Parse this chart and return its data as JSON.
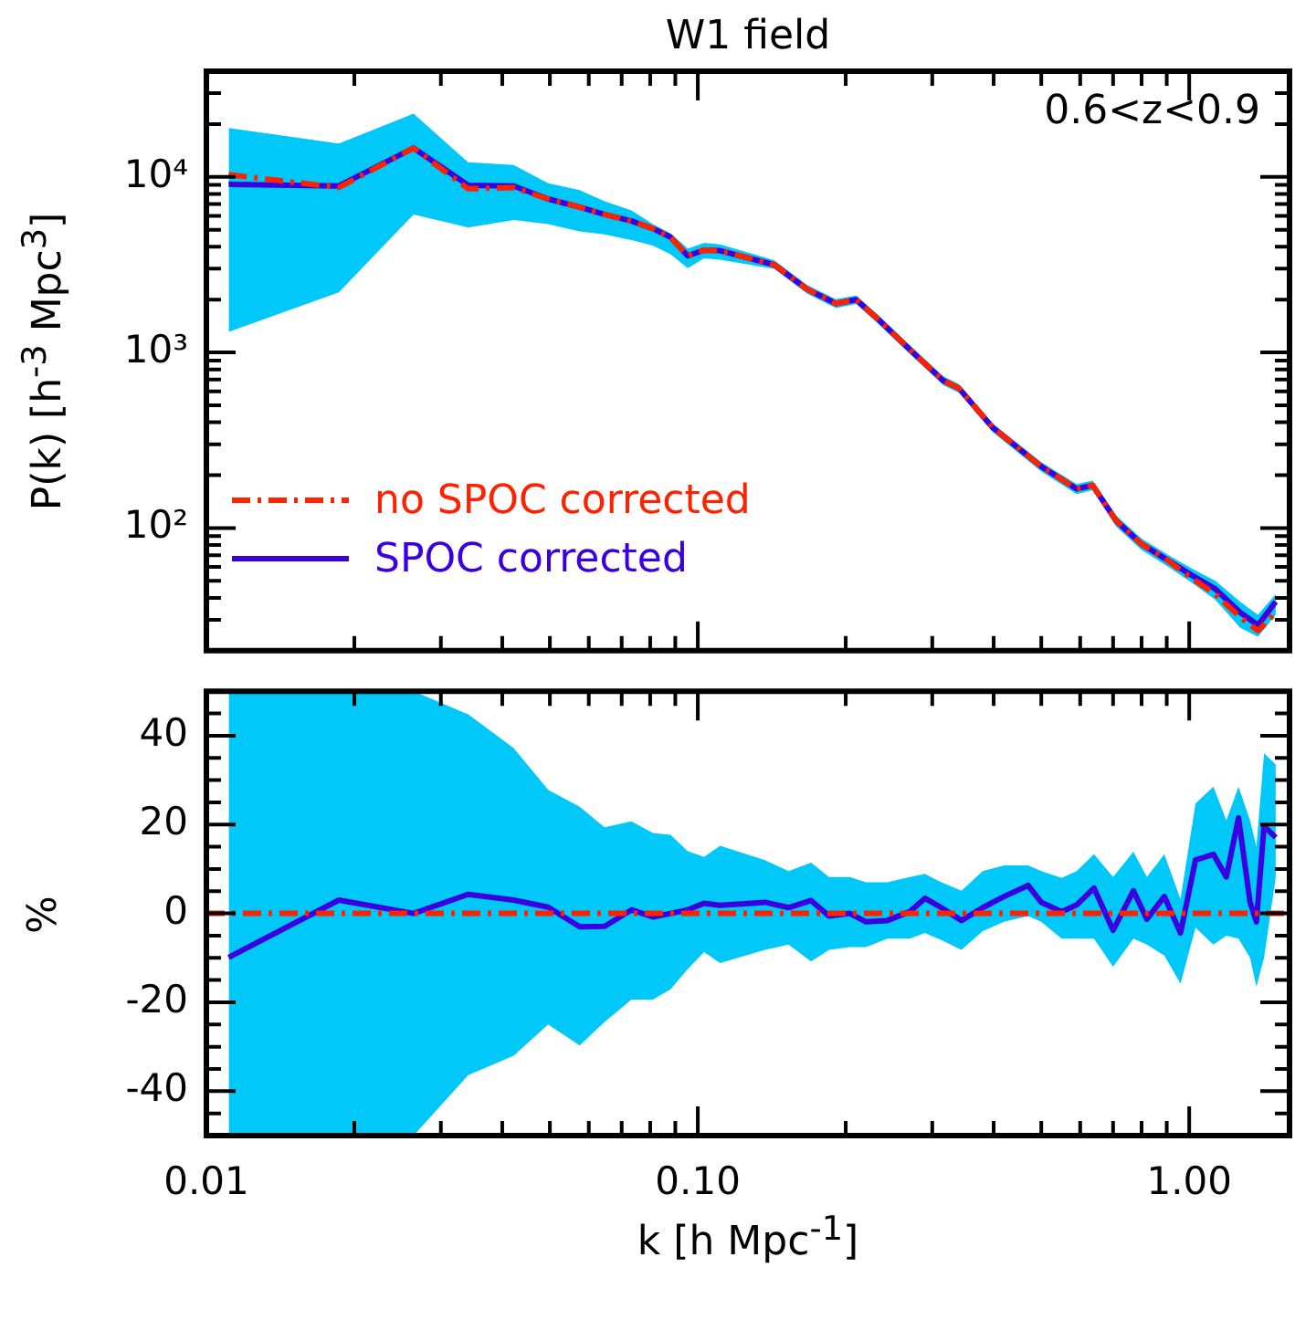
{
  "chart_data": [
    {
      "type": "line",
      "title": "W1 field",
      "ylabel": "P(k) [h$^{-3}$ Mpc$^{3}$]",
      "annotations": [
        "0.6<z<0.9"
      ],
      "log": "xy",
      "xlim": [
        0.01,
        1.6
      ],
      "xticks": [
        0.01,
        {
          "value": 0.02,
          "label": null
        },
        {
          "value": 0.03,
          "label": null
        },
        {
          "value": 0.04,
          "label": null
        },
        {
          "value": 0.05,
          "label": null
        },
        {
          "value": 0.06,
          "label": null
        },
        {
          "value": 0.07,
          "label": null
        },
        {
          "value": 0.08,
          "label": null
        },
        {
          "value": 0.09,
          "label": null
        },
        0.1,
        {
          "value": 0.2,
          "label": null
        },
        {
          "value": 0.3,
          "label": null
        },
        {
          "value": 0.4,
          "label": null
        },
        {
          "value": 0.5,
          "label": null
        },
        {
          "value": 0.6,
          "label": null
        },
        {
          "value": 0.7,
          "label": null
        },
        {
          "value": 0.8,
          "label": null
        },
        {
          "value": 0.9,
          "label": null
        },
        1
      ],
      "ylim": [
        20,
        40000
      ],
      "yticks": [
        {
          "value": 20,
          "label": null
        },
        {
          "value": 30,
          "label": null
        },
        {
          "value": 40,
          "label": null
        },
        {
          "value": 50,
          "label": null
        },
        {
          "value": 60,
          "label": null
        },
        {
          "value": 70,
          "label": null
        },
        {
          "value": 80,
          "label": null
        },
        {
          "value": 90,
          "label": null
        },
        {
          "value": 100,
          "label": "10²"
        },
        {
          "value": 200,
          "label": null
        },
        {
          "value": 300,
          "label": null
        },
        {
          "value": 400,
          "label": null
        },
        {
          "value": 500,
          "label": null
        },
        {
          "value": 600,
          "label": null
        },
        {
          "value": 700,
          "label": null
        },
        {
          "value": 800,
          "label": null
        },
        {
          "value": 900,
          "label": null
        },
        {
          "value": 1000,
          "label": "10³"
        },
        {
          "value": 2000,
          "label": null
        },
        {
          "value": 3000,
          "label": null
        },
        {
          "value": 4000,
          "label": null
        },
        {
          "value": 5000,
          "label": null
        },
        {
          "value": 6000,
          "label": null
        },
        {
          "value": 7000,
          "label": null
        },
        {
          "value": 8000,
          "label": null
        },
        {
          "value": 9000,
          "label": null
        },
        {
          "value": 10000,
          "label": "10⁴"
        },
        {
          "value": 20000,
          "label": null
        },
        {
          "value": 30000,
          "label": null
        },
        {
          "value": 40000,
          "label": null
        }
      ],
      "tick_labels": "y",
      "legend": "bottom left",
      "series": [
        {
          "name": "no SPOC corrected",
          "color": "#ff2200",
          "line_style": "dashdot",
          "x": [
            0.0111,
            0.0186,
            0.0264,
            0.0341,
            0.0422,
            0.0496,
            0.0575,
            0.0646,
            0.0733,
            0.081,
            0.088,
            0.0954,
            0.103,
            0.111,
            0.143,
            0.167,
            0.191,
            0.21,
            0.232,
            0.27,
            0.316,
            0.34,
            0.398,
            0.5,
            0.59,
            0.636,
            0.71,
            0.8,
            0.9,
            1.01,
            1.13,
            1.27,
            1.38,
            1.5
          ],
          "values": [
            10300,
            8700,
            14600,
            8550,
            8700,
            7480,
            6730,
            6110,
            5600,
            5080,
            4540,
            3550,
            3830,
            3800,
            3160,
            2290,
            1900,
            2000,
            1560,
            1040,
            690,
            625,
            374,
            224,
            167,
            175,
            110,
            81,
            66,
            52,
            42,
            31,
            26,
            33
          ]
        },
        {
          "name": "SPOC corrected",
          "color": "#3a00e0",
          "x": [
            0.0111,
            0.0186,
            0.0264,
            0.0341,
            0.0422,
            0.0496,
            0.0575,
            0.0646,
            0.0733,
            0.081,
            0.088,
            0.0954,
            0.103,
            0.111,
            0.143,
            0.167,
            0.191,
            0.21,
            0.232,
            0.27,
            0.316,
            0.34,
            0.398,
            0.5,
            0.59,
            0.636,
            0.71,
            0.8,
            0.9,
            1.01,
            1.13,
            1.27,
            1.38,
            1.5
          ],
          "values": [
            9080,
            8880,
            14600,
            8950,
            8880,
            7480,
            6730,
            6110,
            5600,
            5080,
            4540,
            3550,
            3830,
            3800,
            3160,
            2290,
            1900,
            2000,
            1560,
            1040,
            690,
            625,
            374,
            224,
            167,
            175,
            110,
            81,
            66,
            54,
            45,
            33,
            28,
            38
          ],
          "upper": [
            19000,
            15500,
            22900,
            12100,
            11700,
            9200,
            8420,
            7260,
            6440,
            5380,
            4780,
            3910,
            4210,
            4130,
            3350,
            2420,
            2010,
            2110,
            1650,
            1100,
            730,
            660,
            395,
            237,
            178,
            186,
            118,
            87,
            71,
            59,
            50,
            38,
            32,
            42
          ],
          "lower": [
            1310,
            2200,
            6110,
            5150,
            5680,
            5380,
            4890,
            4710,
            4370,
            4060,
            3630,
            3020,
            3440,
            3370,
            2990,
            2160,
            1790,
            1890,
            1470,
            980,
            650,
            590,
            352,
            210,
            156,
            164,
            102,
            75,
            61,
            49,
            39,
            27,
            24,
            32
          ]
        }
      ]
    },
    {
      "type": "line",
      "xlabel": "k [h Mpc$^{-1}$]",
      "ylabel": "%",
      "log": "x",
      "xlim": [
        0.01,
        1.6
      ],
      "xticks": [
        {
          "value": 0.01,
          "label": "0.01"
        },
        {
          "value": 0.02,
          "label": null
        },
        {
          "value": 0.03,
          "label": null
        },
        {
          "value": 0.04,
          "label": null
        },
        {
          "value": 0.05,
          "label": null
        },
        {
          "value": 0.06,
          "label": null
        },
        {
          "value": 0.07,
          "label": null
        },
        {
          "value": 0.08,
          "label": null
        },
        {
          "value": 0.09,
          "label": null
        },
        {
          "value": 0.1,
          "label": "0.10"
        },
        {
          "value": 0.2,
          "label": null
        },
        {
          "value": 0.3,
          "label": null
        },
        {
          "value": 0.4,
          "label": null
        },
        {
          "value": 0.5,
          "label": null
        },
        {
          "value": 0.6,
          "label": null
        },
        {
          "value": 0.7,
          "label": null
        },
        {
          "value": 0.8,
          "label": null
        },
        {
          "value": 0.9,
          "label": null
        },
        {
          "value": 1,
          "label": "1.00"
        }
      ],
      "ylim": [
        -50,
        50
      ],
      "yticks": [
        {
          "value": -45,
          "label": null
        },
        -40,
        {
          "value": -35,
          "label": null
        },
        {
          "value": -30,
          "label": null
        },
        {
          "value": -25,
          "label": null
        },
        -20,
        {
          "value": -15,
          "label": null
        },
        {
          "value": -10,
          "label": null
        },
        {
          "value": -5,
          "label": null
        },
        0,
        {
          "value": 5,
          "label": null
        },
        {
          "value": 10,
          "label": null
        },
        {
          "value": 15,
          "label": null
        },
        20,
        {
          "value": 25,
          "label": null
        },
        {
          "value": 30,
          "label": null
        },
        {
          "value": 35,
          "label": null
        },
        40,
        {
          "value": 45,
          "label": null
        }
      ],
      "ref_lines": [
        {
          "axis": "y",
          "value": 0,
          "color": "#ff2200",
          "line_style": "dashdot"
        }
      ],
      "series": [
        {
          "color": "#3a00e0",
          "x": [
            0.0111,
            0.0186,
            0.0264,
            0.0341,
            0.0422,
            0.0496,
            0.0575,
            0.0646,
            0.0733,
            0.081,
            0.088,
            0.0954,
            0.103,
            0.111,
            0.137,
            0.153,
            0.17,
            0.185,
            0.204,
            0.22,
            0.243,
            0.27,
            0.29,
            0.313,
            0.344,
            0.38,
            0.42,
            0.47,
            0.5,
            0.55,
            0.59,
            0.64,
            0.7,
            0.77,
            0.82,
            0.89,
            0.96,
            1.03,
            1.12,
            1.19,
            1.26,
            1.33,
            1.37,
            1.42,
            1.5
          ],
          "values": [
            -9.9,
            3,
            0,
            4.3,
            3,
            1.4,
            -3,
            -2.9,
            0.8,
            -0.8,
            0,
            0.8,
            2.3,
            1.8,
            2.5,
            1.3,
            2.9,
            -0.6,
            0,
            -1.9,
            -1.6,
            0.4,
            3.4,
            1.3,
            -1.6,
            1.3,
            3.8,
            6.3,
            2.5,
            0.4,
            1.9,
            5.7,
            -3.8,
            5.1,
            -1.3,
            3.8,
            -4.4,
            12,
            13.3,
            8.2,
            21.5,
            2.5,
            -1.9,
            19.6,
            17.1
          ],
          "upper": [
            50,
            50,
            50,
            44.8,
            37.2,
            27.8,
            24,
            19.4,
            20.7,
            18.1,
            17.7,
            14,
            12.7,
            15.2,
            12,
            9.5,
            11.4,
            8.2,
            8.2,
            7,
            7,
            8.2,
            8.9,
            7,
            5.1,
            9.5,
            10.8,
            10.8,
            9.5,
            8,
            9.5,
            13.3,
            8.2,
            13.9,
            8.2,
            13.3,
            3.2,
            24.7,
            28.5,
            20.9,
            28.5,
            20.9,
            15,
            36,
            33.5
          ],
          "lower": [
            -50,
            -50,
            -50,
            -36.4,
            -32,
            -25,
            -29.7,
            -24.4,
            -19.4,
            -19.4,
            -17.1,
            -12.5,
            -8.7,
            -11.2,
            -8.2,
            -7,
            -10.8,
            -8.2,
            -7.6,
            -7.6,
            -5.7,
            -5.7,
            -4.4,
            -6,
            -8.2,
            -4,
            -1.9,
            -0.6,
            -1.9,
            -5.7,
            -5.7,
            -5.7,
            -12,
            -5.7,
            -7,
            -9.5,
            -15.8,
            -3.2,
            -7,
            -5,
            -5.7,
            -10,
            -16.5,
            -10,
            8.2
          ]
        }
      ]
    }
  ]
}
